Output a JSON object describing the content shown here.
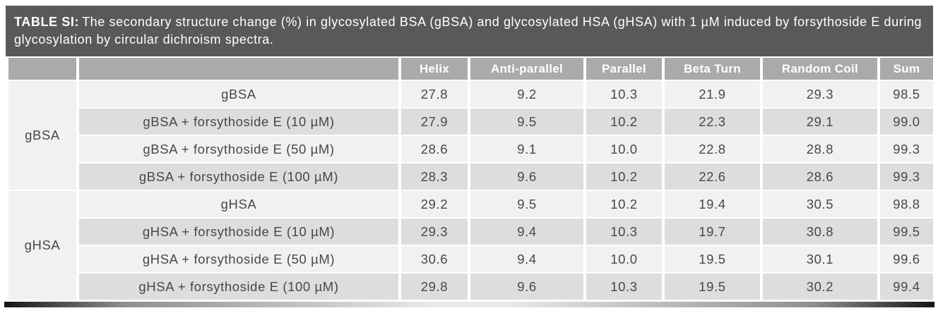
{
  "caption": {
    "label": "TABLE SI:",
    "text": "The secondary structure change (%) in glycosylated BSA (gBSA) and glycosylated HSA (gHSA) with 1 µM induced by forsythoside E during glycosylation by circular dichroism spectra."
  },
  "table": {
    "columns": [
      "Helix",
      "Anti-parallel",
      "Parallel",
      "Beta Turn",
      "Random Coil",
      "Sum"
    ],
    "groups": [
      {
        "label": "gBSA",
        "rows": [
          {
            "sample": "gBSA",
            "values": [
              "27.8",
              "9.2",
              "10.3",
              "21.9",
              "29.3",
              "98.5"
            ]
          },
          {
            "sample": "gBSA + forsythoside E (10 µM)",
            "values": [
              "27.9",
              "9.5",
              "10.2",
              "22.3",
              "29.1",
              "99.0"
            ]
          },
          {
            "sample": "gBSA + forsythoside E (50 µM)",
            "values": [
              "28.6",
              "9.1",
              "10.0",
              "22.8",
              "28.8",
              "99.3"
            ]
          },
          {
            "sample": "gBSA + forsythoside E (100 µM)",
            "values": [
              "28.3",
              "9.6",
              "10.2",
              "22.6",
              "28.6",
              "99.3"
            ]
          }
        ]
      },
      {
        "label": "gHSA",
        "rows": [
          {
            "sample": "gHSA",
            "values": [
              "29.2",
              "9.5",
              "10.2",
              "19.4",
              "30.5",
              "98.8"
            ]
          },
          {
            "sample": "gHSA + forsythoside E (10 µM)",
            "values": [
              "29.3",
              "9.4",
              "10.3",
              "19.7",
              "30.8",
              "99.5"
            ]
          },
          {
            "sample": "gHSA + forsythoside E (50 µM)",
            "values": [
              "30.6",
              "9.4",
              "10.0",
              "19.5",
              "30.1",
              "99.6"
            ]
          },
          {
            "sample": "gHSA + forsythoside E (100 µM)",
            "values": [
              "29.8",
              "9.6",
              "10.3",
              "19.5",
              "30.2",
              "99.4"
            ]
          }
        ]
      }
    ]
  },
  "colors": {
    "caption_background": "#58595b",
    "header_background": "#a8aaac",
    "row_light": "#f1f1f2",
    "row_dark": "#dcddde",
    "header_text": "#ffffff",
    "body_text": "#47484a",
    "separator": "#ffffff"
  }
}
